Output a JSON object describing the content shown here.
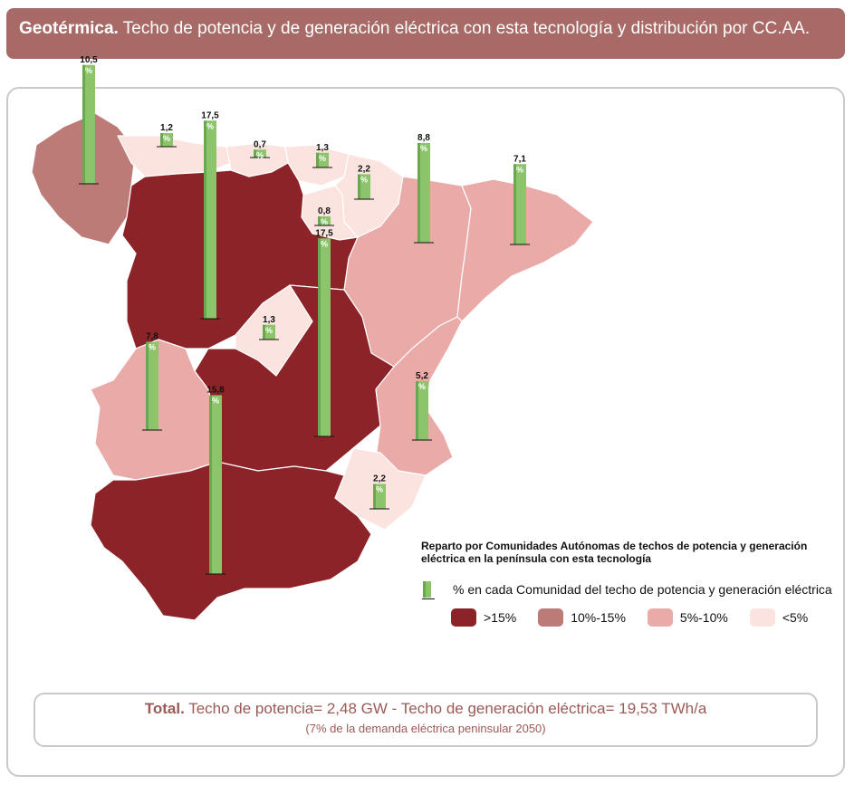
{
  "header": {
    "title_bold": "Geotérmica.",
    "title_rest": " Techo de potencia y de generación eléctrica con esta tecnología y distribución por CC.AA."
  },
  "legend": {
    "title": "Reparto por Comunidades Autónomas de techos de potencia y generación eléctrica en la península con esta tecnología",
    "bar_label": "% en cada Comunidad del techo de potencia y generación eléctrica",
    "categories": [
      {
        "label": ">15%",
        "color": "#8b2328"
      },
      {
        "label": "10%-15%",
        "color": "#bd7b78"
      },
      {
        "label": "5%-10%",
        "color": "#eaaaa8"
      },
      {
        "label": "<5%",
        "color": "#fbe4df"
      }
    ]
  },
  "bar_glyph": "%",
  "regions": [
    {
      "name": "Galicia",
      "class": "10%-15%",
      "value": "10,5"
    },
    {
      "name": "Asturias",
      "class": "<5%",
      "value": "1,2"
    },
    {
      "name": "Cantabria",
      "class": "<5%",
      "value": "0,7"
    },
    {
      "name": "País Vasco",
      "class": "<5%",
      "value": "1,3"
    },
    {
      "name": "Navarra",
      "class": "<5%",
      "value": "2,2"
    },
    {
      "name": "La Rioja",
      "class": "<5%",
      "value": "0,8"
    },
    {
      "name": "Aragón",
      "class": "5%-10%",
      "value": "8,8"
    },
    {
      "name": "Cataluña",
      "class": "5%-10%",
      "value": "7,1"
    },
    {
      "name": "Castilla y León",
      "class": ">15%",
      "value": "17,5"
    },
    {
      "name": "Madrid",
      "class": "<5%",
      "value": "1,3"
    },
    {
      "name": "Castilla-La Mancha",
      "class": ">15%",
      "value": "17,5"
    },
    {
      "name": "Extremadura",
      "class": "5%-10%",
      "value": "7,8"
    },
    {
      "name": "Comunidad Valenciana",
      "class": "5%-10%",
      "value": "5,2"
    },
    {
      "name": "Murcia",
      "class": "<5%",
      "value": "2,2"
    },
    {
      "name": "Andalucía",
      "class": ">15%",
      "value": "15,8"
    }
  ],
  "total": {
    "label": "Total.",
    "text": " Techo de potencia= 2,48 GW - Techo de generación eléctrica= 19,53 TWh/a",
    "note": "(7% de la demanda eléctrica peninsular 2050)"
  }
}
